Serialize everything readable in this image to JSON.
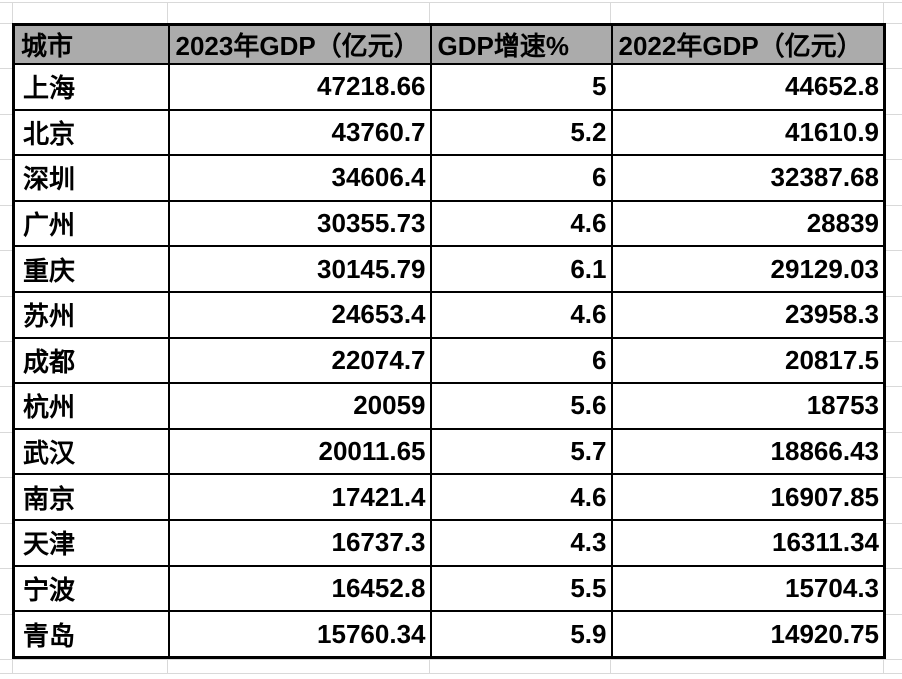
{
  "colors": {
    "header_bg": "#ABABAB",
    "table_border": "#000000",
    "gridline": "#D9D9D9",
    "text": "#000000",
    "background": "#FFFFFF"
  },
  "table": {
    "columns": [
      {
        "label": "城市",
        "align": "left"
      },
      {
        "label": "2023年GDP（亿元）",
        "align": "left"
      },
      {
        "label": "GDP增速%",
        "align": "left"
      },
      {
        "label": "2022年GDP（亿元）",
        "align": "left"
      }
    ],
    "rows": [
      {
        "city": "上海",
        "gdp_2023": "47218.66",
        "growth": "5",
        "gdp_2022": "44652.8"
      },
      {
        "city": "北京",
        "gdp_2023": "43760.7",
        "growth": "5.2",
        "gdp_2022": "41610.9"
      },
      {
        "city": "深圳",
        "gdp_2023": "34606.4",
        "growth": "6",
        "gdp_2022": "32387.68"
      },
      {
        "city": "广州",
        "gdp_2023": "30355.73",
        "growth": "4.6",
        "gdp_2022": "28839"
      },
      {
        "city": "重庆",
        "gdp_2023": "30145.79",
        "growth": "6.1",
        "gdp_2022": "29129.03"
      },
      {
        "city": "苏州",
        "gdp_2023": "24653.4",
        "growth": "4.6",
        "gdp_2022": "23958.3"
      },
      {
        "city": "成都",
        "gdp_2023": "22074.7",
        "growth": "6",
        "gdp_2022": "20817.5"
      },
      {
        "city": "杭州",
        "gdp_2023": "20059",
        "growth": "5.6",
        "gdp_2022": "18753"
      },
      {
        "city": "武汉",
        "gdp_2023": "20011.65",
        "growth": "5.7",
        "gdp_2022": "18866.43"
      },
      {
        "city": "南京",
        "gdp_2023": "17421.4",
        "growth": "4.6",
        "gdp_2022": "16907.85"
      },
      {
        "city": "天津",
        "gdp_2023": "16737.3",
        "growth": "4.3",
        "gdp_2022": "16311.34"
      },
      {
        "city": "宁波",
        "gdp_2023": "16452.8",
        "growth": "5.5",
        "gdp_2022": "15704.3"
      },
      {
        "city": "青岛",
        "gdp_2023": "15760.34",
        "growth": "5.9",
        "gdp_2022": "14920.75"
      }
    ]
  }
}
